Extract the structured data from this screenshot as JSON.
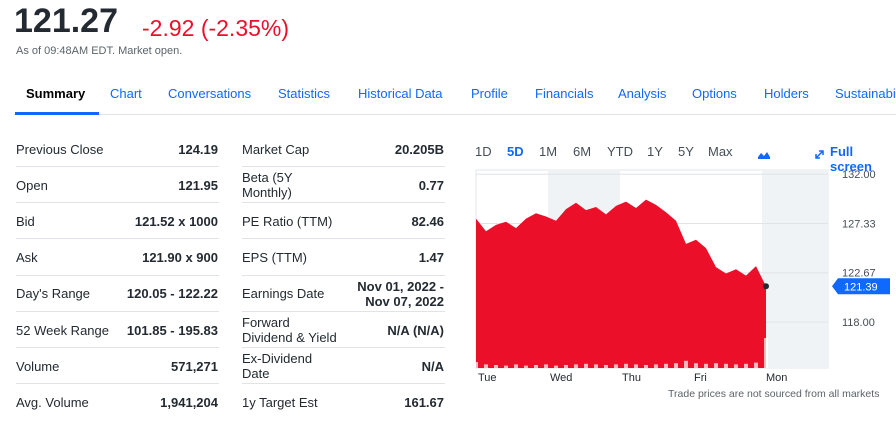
{
  "header": {
    "price": "121.27",
    "change": "-2.92 (-2.35%)",
    "status": "As of 09:48AM EDT. Market open."
  },
  "tabs": [
    "Summary",
    "Chart",
    "Conversations",
    "Statistics",
    "Historical Data",
    "Profile",
    "Financials",
    "Analysis",
    "Options",
    "Holders",
    "Sustainability"
  ],
  "summary_left": {
    "rows": [
      [
        "Previous Close",
        "124.19"
      ],
      [
        "Open",
        "121.95"
      ],
      [
        "Bid",
        "121.52 x 1000"
      ],
      [
        "Ask",
        "121.90 x 900"
      ],
      [
        "Day's Range",
        "120.05 - 122.22"
      ],
      [
        "52 Week Range",
        "101.85 - 195.83"
      ],
      [
        "Volume",
        "571,271"
      ],
      [
        "Avg. Volume",
        "1,941,204"
      ]
    ]
  },
  "summary_right": {
    "rows": [
      [
        "Market Cap",
        "20.205B"
      ],
      [
        "Beta (5Y Monthly)",
        "0.77"
      ],
      [
        "PE Ratio (TTM)",
        "82.46"
      ],
      [
        "EPS (TTM)",
        "1.47"
      ],
      [
        "Earnings Date",
        "Nov 01, 2022 - Nov 07, 2022"
      ],
      [
        "Forward Dividend & Yield",
        "N/A (N/A)"
      ],
      [
        "Ex-Dividend Date",
        "N/A"
      ],
      [
        "1y Target Est",
        "161.67"
      ]
    ]
  },
  "chart": {
    "type": "area",
    "ranges": [
      "1D",
      "5D",
      "1M",
      "6M",
      "YTD",
      "1Y",
      "5Y",
      "Max"
    ],
    "full_screen": "Full screen",
    "ylim": [
      113.65,
      132.4
    ],
    "yticks": [
      {
        "value": 132,
        "label": "132.00"
      },
      {
        "value": 127.33,
        "label": "127.33"
      },
      {
        "value": 122.67,
        "label": "122.67"
      },
      {
        "value": 118,
        "label": "118.00"
      }
    ],
    "current": {
      "value": 121.39,
      "label": "121.39"
    },
    "categories": [
      "Tue",
      "Wed",
      "Thu",
      "Fri",
      "Mon"
    ],
    "values": [
      127.8,
      126.6,
      127.2,
      127.5,
      126.9,
      127.8,
      128.3,
      128.0,
      127.6,
      128.7,
      129.3,
      128.6,
      128.9,
      128.2,
      129.0,
      129.4,
      128.8,
      129.6,
      129.1,
      128.4,
      127.6,
      125.4,
      125.8,
      125.0,
      123.2,
      122.6,
      123.0,
      122.4,
      123.3,
      121.39
    ],
    "volume": [
      0.5,
      0.3,
      0.25,
      0.2,
      0.3,
      0.2,
      0.25,
      0.3,
      0.2,
      0.25,
      0.3,
      0.35,
      0.3,
      0.25,
      0.3,
      0.35,
      0.3,
      0.25,
      0.3,
      0.35,
      0.4,
      0.6,
      0.4,
      0.35,
      0.4,
      0.35,
      0.3,
      0.35,
      0.45,
      2.5
    ],
    "color": "#eb0f29",
    "note": "Trade prices are not sourced from all markets"
  }
}
